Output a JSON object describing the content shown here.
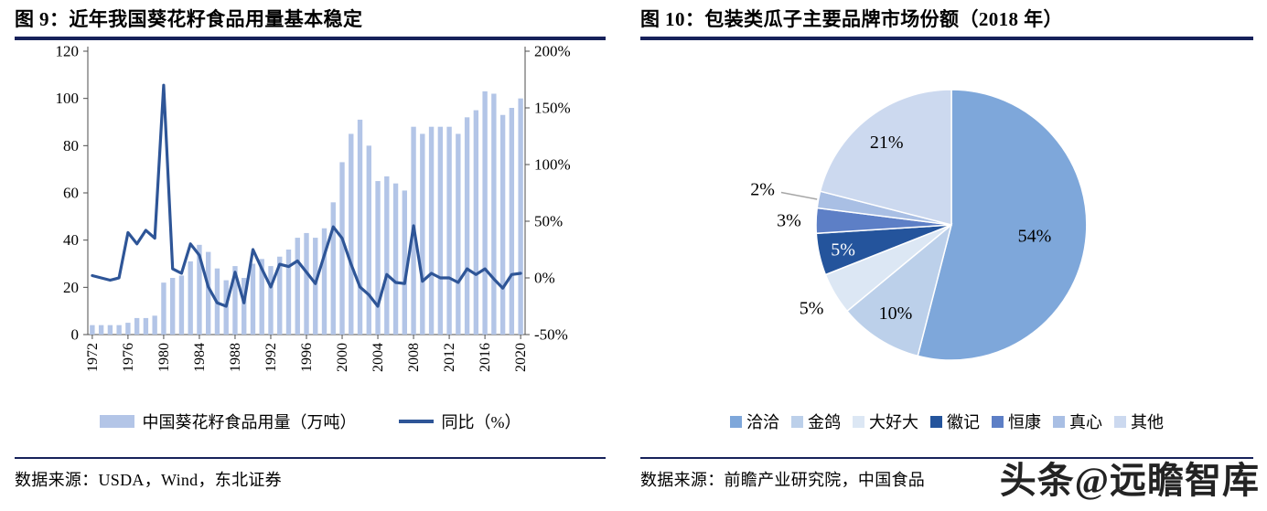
{
  "left_panel": {
    "title": "图 9：近年我国葵花籽食品用量基本稳定",
    "source": "数据来源：USDA，Wind，东北证券",
    "chart_data": {
      "type": "bar+line",
      "x": [
        1972,
        1973,
        1974,
        1975,
        1976,
        1977,
        1978,
        1979,
        1980,
        1981,
        1982,
        1983,
        1984,
        1985,
        1986,
        1987,
        1988,
        1989,
        1990,
        1991,
        1992,
        1993,
        1994,
        1995,
        1996,
        1997,
        1998,
        1999,
        2000,
        2001,
        2002,
        2003,
        2004,
        2005,
        2006,
        2007,
        2008,
        2009,
        2010,
        2011,
        2012,
        2013,
        2014,
        2015,
        2016,
        2017,
        2018,
        2019,
        2020
      ],
      "x_ticks": [
        1972,
        1976,
        1980,
        1984,
        1988,
        1992,
        1996,
        2000,
        2004,
        2008,
        2012,
        2016,
        2020
      ],
      "series": [
        {
          "name": "中国葵花籽食品用量（万吨）",
          "type": "bar",
          "axis": "left",
          "color": "#b3c5e7",
          "values": [
            4,
            4,
            4,
            4,
            5,
            7,
            7,
            8,
            22,
            24,
            25,
            31,
            38,
            35,
            28,
            23,
            29,
            24,
            30,
            32,
            29,
            33,
            36,
            41,
            43,
            41,
            45,
            56,
            73,
            85,
            91,
            80,
            65,
            67,
            64,
            61,
            88,
            85,
            88,
            88,
            88,
            85,
            92,
            95,
            103,
            102,
            93,
            96,
            100
          ]
        },
        {
          "name": "同比（%）",
          "type": "line",
          "axis": "right",
          "color": "#2e5597",
          "values": [
            2,
            0,
            -2,
            0,
            40,
            30,
            42,
            35,
            170,
            8,
            4,
            30,
            20,
            -8,
            -22,
            -25,
            5,
            -22,
            25,
            8,
            -8,
            12,
            10,
            15,
            5,
            -5,
            20,
            45,
            35,
            12,
            -8,
            -15,
            -25,
            3,
            -4,
            -5,
            46,
            -3,
            4,
            0,
            0,
            -4,
            8,
            3,
            8,
            -1,
            -9,
            3,
            4
          ]
        }
      ],
      "left_axis": {
        "min": 0,
        "max": 120,
        "step": 20
      },
      "right_axis": {
        "min": -50,
        "max": 200,
        "step": 50,
        "unit": "%"
      },
      "grid": false,
      "legend_position": "bottom"
    }
  },
  "right_panel": {
    "title": "图 10：包装类瓜子主要品牌市场份额（2018 年）",
    "source": "数据来源：前瞻产业研究院，中国食品",
    "chart_data": {
      "type": "pie",
      "year": "2018",
      "labels": [
        "洽洽",
        "金鸽",
        "大好大",
        "徽记",
        "恒康",
        "真心",
        "其他"
      ],
      "values": [
        54,
        10,
        5,
        5,
        3,
        2,
        21
      ],
      "unit": "%",
      "colors": [
        "#7ea7da",
        "#bcd0ea",
        "#dce7f4",
        "#24549c",
        "#5d7fc6",
        "#a9bfe4",
        "#ccd9ef"
      ],
      "label_layout": {
        "radius": [
          0.62,
          0.77,
          1.2,
          0.82,
          1.2,
          1.42,
          0.78
        ],
        "colors": [
          "#000000",
          "#000000",
          "#000000",
          "#ffffff",
          "#000000",
          "#000000",
          "#000000"
        ],
        "leader": [
          false,
          false,
          false,
          false,
          false,
          true,
          false
        ]
      },
      "legend_position": "bottom"
    }
  },
  "watermark": "头条@远瞻智库"
}
